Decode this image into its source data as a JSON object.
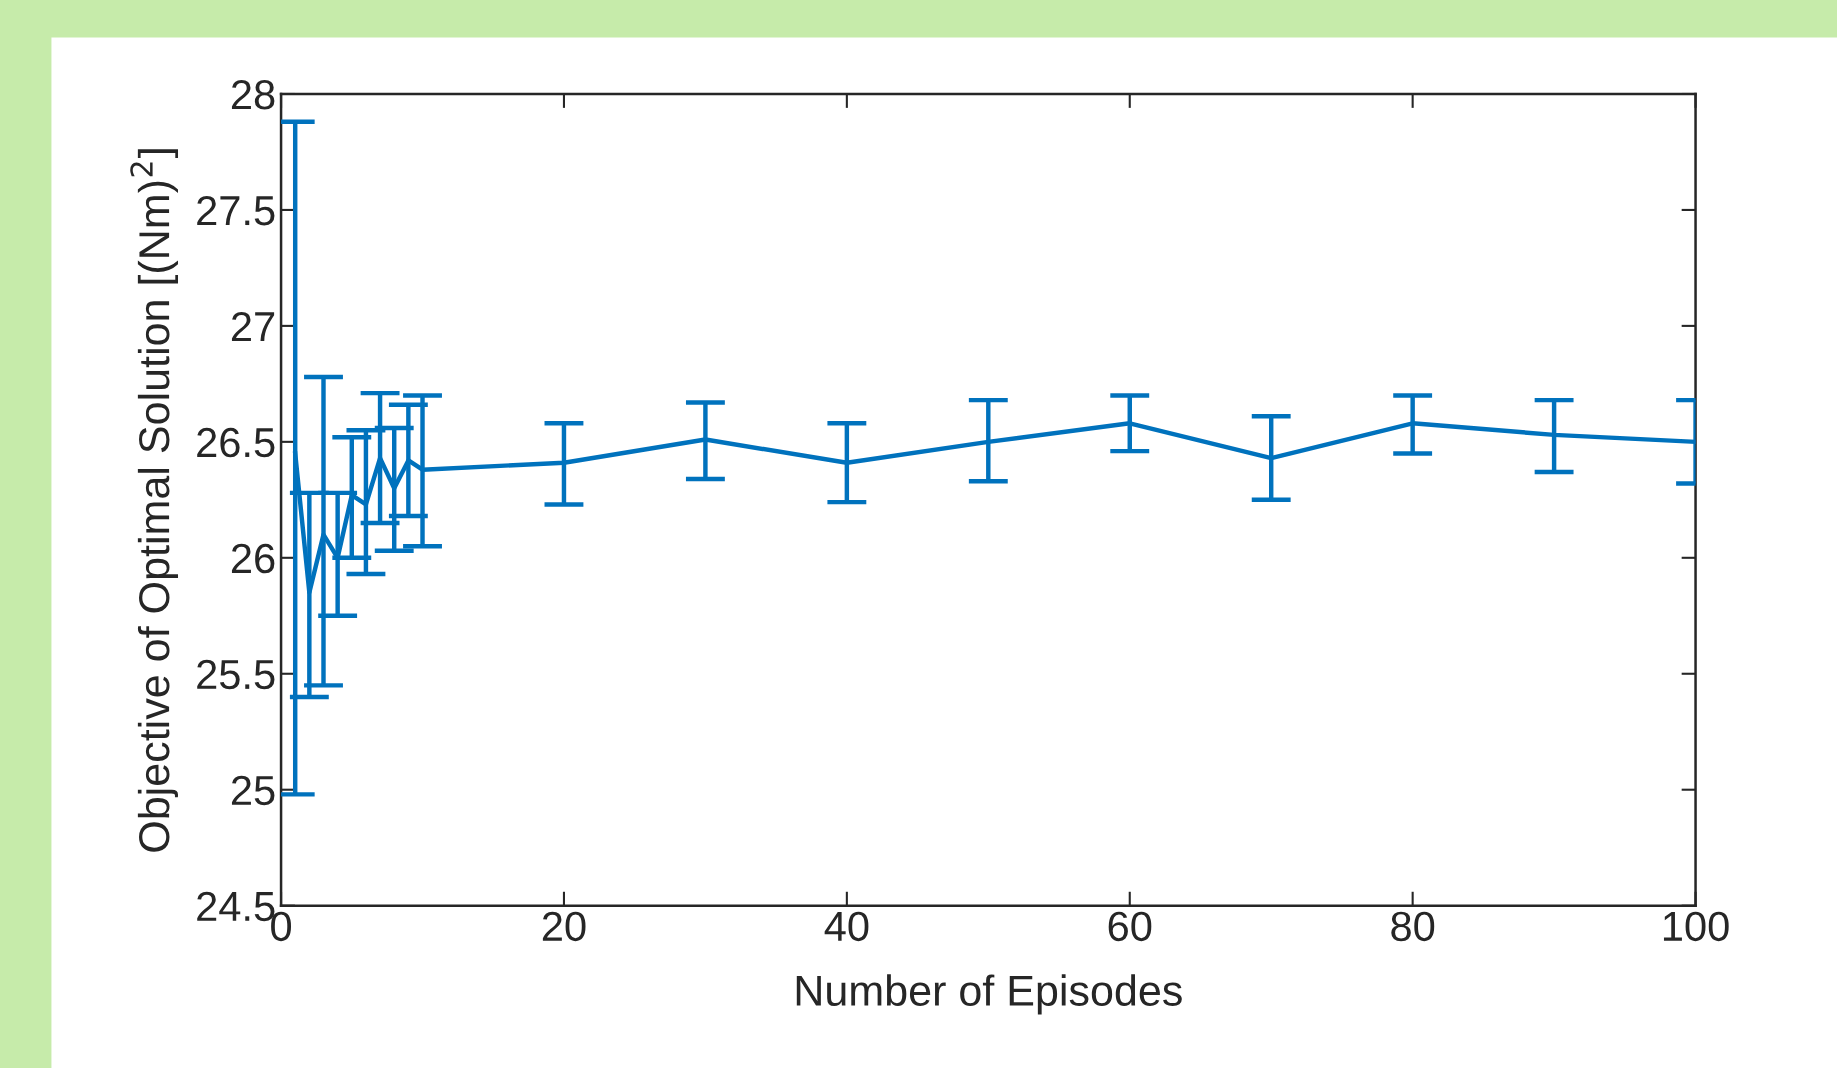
{
  "chart_data": {
    "type": "line",
    "xlabel": "Number of Episodes",
    "ylabel": "Objective of Optimal Solution [(Nm)$^{2}$]",
    "x": [
      1,
      2,
      3,
      4,
      5,
      6,
      7,
      8,
      9,
      10,
      20,
      30,
      40,
      50,
      60,
      70,
      80,
      90,
      100
    ],
    "series": [
      {
        "color": "#0072bd",
        "values": [
          26.45,
          25.85,
          26.1,
          26.0,
          26.27,
          26.23,
          26.43,
          26.3,
          26.42,
          26.38,
          26.41,
          26.51,
          26.41,
          26.5,
          26.58,
          26.43,
          26.58,
          26.53,
          26.5
        ],
        "errors": [
          [
            24.98,
            27.88
          ],
          [
            25.4,
            26.28
          ],
          [
            25.45,
            26.78
          ],
          [
            25.75,
            26.28
          ],
          [
            26.0,
            26.52
          ],
          [
            25.93,
            26.55
          ],
          [
            26.15,
            26.71
          ],
          [
            26.03,
            26.56
          ],
          [
            26.18,
            26.66
          ],
          [
            26.05,
            26.7
          ],
          [
            26.23,
            26.58
          ],
          [
            26.34,
            26.67
          ],
          [
            26.24,
            26.58
          ],
          [
            26.33,
            26.68
          ],
          [
            26.46,
            26.7
          ],
          [
            26.25,
            26.61
          ],
          [
            26.45,
            26.7
          ],
          [
            26.37,
            26.68
          ],
          [
            26.32,
            26.68
          ]
        ]
      }
    ],
    "xlim": [
      0,
      100
    ],
    "xticks": [
      0,
      20,
      40,
      60,
      80,
      100
    ],
    "ylim": [
      24.5,
      28
    ],
    "yticks": [
      24.5,
      25,
      25.5,
      26,
      26.5,
      27,
      27.5,
      28
    ],
    "grid": false,
    "legend": false,
    "marker": "none",
    "line_style": "solid"
  }
}
